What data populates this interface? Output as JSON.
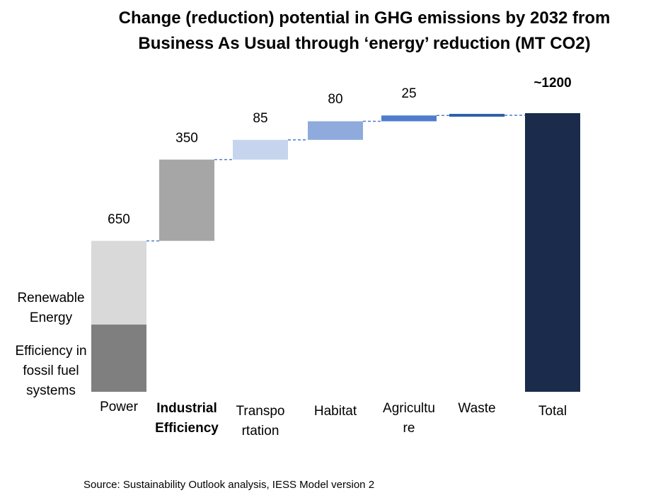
{
  "chart_data": {
    "type": "bar",
    "subtype": "waterfall",
    "title": "Change (reduction) potential in GHG emissions  by 2032 from Business As Usual through ‘energy’ reduction (MT CO2)",
    "categories": [
      "Power",
      "Industrial Efficiency",
      "Transportation",
      "Habitat",
      "Agriculture",
      "Waste",
      "Total"
    ],
    "category_labels_display": [
      "Power",
      "Industrial\nEfficiency",
      "Transpo\nrtation",
      "Habitat",
      "Agricultu\nre",
      "Waste",
      "Total"
    ],
    "values": [
      650,
      350,
      85,
      80,
      25,
      10,
      1200
    ],
    "value_labels": [
      "650",
      "350",
      "85",
      "80",
      "25",
      "",
      "~1200"
    ],
    "stacked_components": {
      "category": "Power",
      "segments": [
        {
          "name": "Renewable Energy",
          "value": 360
        },
        {
          "name": "Efficiency in fossil fuel systems",
          "value": 290
        }
      ]
    },
    "colors": {
      "Power_renewable": "#d9d9d9",
      "Power_fossil": "#7f7f7f",
      "Industrial Efficiency": "#a6a6a6",
      "Transportation": "#c6d4ee",
      "Habitat": "#8faadc",
      "Agriculture": "#4f7ccb",
      "Waste": "#2e62a5",
      "Total": "#1a2b4c",
      "connector": "#4f7ccb"
    },
    "ylim": [
      0,
      1300
    ],
    "xlabel": "",
    "ylabel": "",
    "grid": false,
    "legend": "none",
    "source": "Source: Sustainability Outlook analysis, IESS Model version 2"
  }
}
